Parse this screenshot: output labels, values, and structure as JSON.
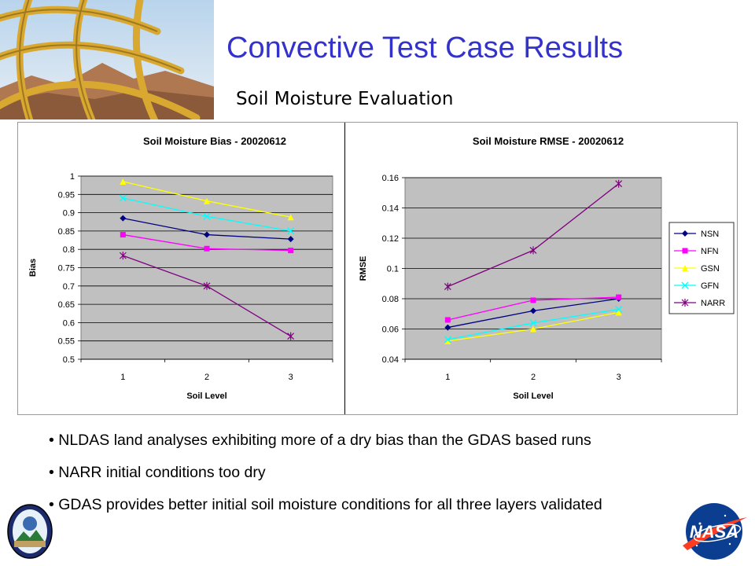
{
  "slide": {
    "title": "Convective Test Case Results",
    "subtitle": "Soil Moisture Evaluation",
    "bullets": [
      "NLDAS land analyses exhibiting more of a dry bias than the GDAS based runs",
      "NARR initial conditions too dry",
      "GDAS provides better initial soil moisture conditions for all three layers validated"
    ]
  },
  "logos": {
    "left": "mission-seal-logo",
    "right": "nasa-meatball-logo"
  },
  "chart_data": [
    {
      "type": "line",
      "title": "Soil Moisture Bias - 20020612",
      "xlabel": "Soil Level",
      "ylabel": "Bias",
      "categories": [
        "1",
        "2",
        "3"
      ],
      "ylim": [
        0.5,
        1
      ],
      "yticks": [
        "0.5",
        "0.55",
        "0.6",
        "0.65",
        "0.7",
        "0.75",
        "0.8",
        "0.85",
        "0.9",
        "0.95",
        "1"
      ],
      "grid": true,
      "plot_bg": "#c0c0c0",
      "series": [
        {
          "name": "NSN",
          "color": "#000080",
          "marker": "diamond",
          "values": [
            0.885,
            0.84,
            0.828
          ]
        },
        {
          "name": "NFN",
          "color": "#ff00ff",
          "marker": "square",
          "values": [
            0.84,
            0.802,
            0.797
          ]
        },
        {
          "name": "GSN",
          "color": "#ffff00",
          "marker": "triangle",
          "values": [
            0.985,
            0.932,
            0.888
          ]
        },
        {
          "name": "GFN",
          "color": "#00ffff",
          "marker": "x",
          "values": [
            0.94,
            0.89,
            0.85
          ]
        },
        {
          "name": "NARR",
          "color": "#800080",
          "marker": "star",
          "values": [
            0.783,
            0.7,
            0.563
          ]
        }
      ]
    },
    {
      "type": "line",
      "title": "Soil Moisture RMSE - 20020612",
      "xlabel": "Soil Level",
      "ylabel": "RMSE",
      "categories": [
        "1",
        "2",
        "3"
      ],
      "ylim": [
        0.04,
        0.16
      ],
      "yticks": [
        "0.04",
        "0.06",
        "0.08",
        "0.1",
        "0.12",
        "0.14",
        "0.16"
      ],
      "grid": true,
      "legend": "right",
      "plot_bg": "#c0c0c0",
      "series": [
        {
          "name": "NSN",
          "color": "#000080",
          "marker": "diamond",
          "values": [
            0.061,
            0.072,
            0.08
          ]
        },
        {
          "name": "NFN",
          "color": "#ff00ff",
          "marker": "square",
          "values": [
            0.066,
            0.079,
            0.081
          ]
        },
        {
          "name": "GSN",
          "color": "#ffff00",
          "marker": "triangle",
          "values": [
            0.052,
            0.06,
            0.071
          ]
        },
        {
          "name": "GFN",
          "color": "#00ffff",
          "marker": "x",
          "values": [
            0.053,
            0.064,
            0.073
          ]
        },
        {
          "name": "NARR",
          "color": "#800080",
          "marker": "star",
          "values": [
            0.088,
            0.112,
            0.156
          ]
        }
      ]
    }
  ]
}
